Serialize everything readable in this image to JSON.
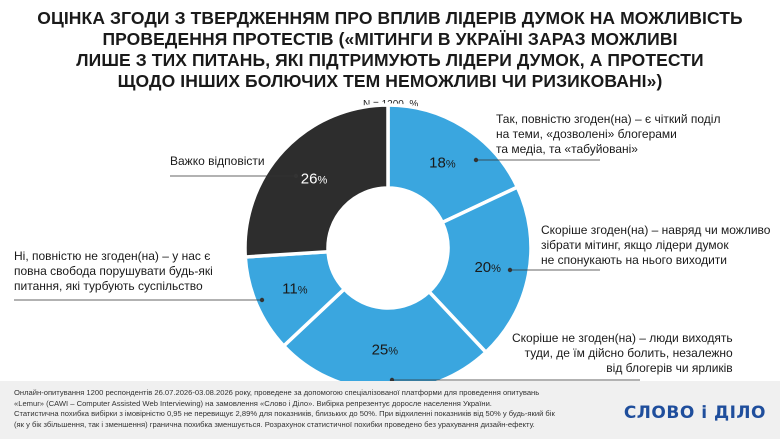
{
  "title_lines": [
    "ОЦІНКА ЗГОДИ З ТВЕРДЖЕННЯМ ПРО ВПЛИВ ЛІДЕРІВ ДУМОК НА МОЖЛИВІСТЬ",
    "ПРОВЕДЕННЯ ПРОТЕСТІВ («МІТИНГИ В УКРАЇНІ ЗАРАЗ МОЖЛИВІ",
    "ЛИШЕ З ТИХ ПИТАНЬ, ЯКІ ПІДТРИМУЮТЬ ЛІДЕРИ ДУМОК, А ПРОТЕСТИ",
    "ЩОДО ІНШИХ БОЛЮЧИХ ТЕМ НЕМОЖЛИВІ ЧИ РИЗИКОВАНІ»)"
  ],
  "sample_note": "N = 1200, %",
  "chart_data": {
    "type": "pie",
    "donut": true,
    "unit": "%",
    "slices": [
      {
        "label": "Так, повністю згоден(на) – є чіткий поділ на теми, «дозволені» блогерами та медіа, та «табуйовані»",
        "value": 18,
        "color": "#3aa6df"
      },
      {
        "label": "Скоріше згоден(на) – навряд чи можливо зібрати мітинг, якщо лідери думок не спонукають на нього виходити",
        "value": 20,
        "color": "#3aa6df"
      },
      {
        "label": "Скоріше не згоден(на) – люди виходять туди, де їм дійсно болить, незалежно від блогерів чи ярликів",
        "value": 25,
        "color": "#3aa6df"
      },
      {
        "label": "Ні, повністю не згоден(на) – у нас є повна свобода порушувати будь-які питання, які турбують суспільство",
        "value": 11,
        "color": "#3aa6df"
      },
      {
        "label": "Важко відповісти",
        "value": 26,
        "color": "#2d2d2d"
      }
    ]
  },
  "labels": {
    "s0": [
      "Так, повністю згоден(на) – є чіткий поділ",
      "на теми, «дозволені» блогерами",
      "та медіа, та «табуйовані»"
    ],
    "s1": [
      "Скоріше згоден(на) – навряд чи можливо",
      "зібрати мітинг, якщо лідери думок",
      "не спонукають на нього виходити"
    ],
    "s2": [
      "Скоріше не згоден(на) – люди виходять",
      "туди, де їм дійсно болить, незалежно",
      "від блогерів чи ярликів"
    ],
    "s3": [
      "Ні, повністю не згоден(на) – у нас є",
      "повна свобода порушувати будь-які",
      "питання, які турбують суспільство"
    ],
    "s4": [
      "Важко відповісти"
    ]
  },
  "footer": {
    "lines": [
      "Онлайн-опитування 1200 респондентів 26.07.2026-03.08.2026 року, проведене за допомогою спеціалізованої платформи для проведення опитувань",
      "«Lemur» (CAWI – Computer Assisted Web Interviewing) на замовлення «Слово і Діло». Вибірка репрезентує доросле населення України.",
      "Статистична похибка вибірки з імовірністю 0,95 не перевищує 2,89% для показників, близьких до 50%. При відхиленні показників від 50% у будь-який бік",
      "(як у бік збільшення, так і зменшення) гранична похибка зменшується. Розрахунок статистичної похибки проведено без урахування дизайн-ефекту."
    ],
    "logo": "СЛОВО і ДІЛО"
  }
}
